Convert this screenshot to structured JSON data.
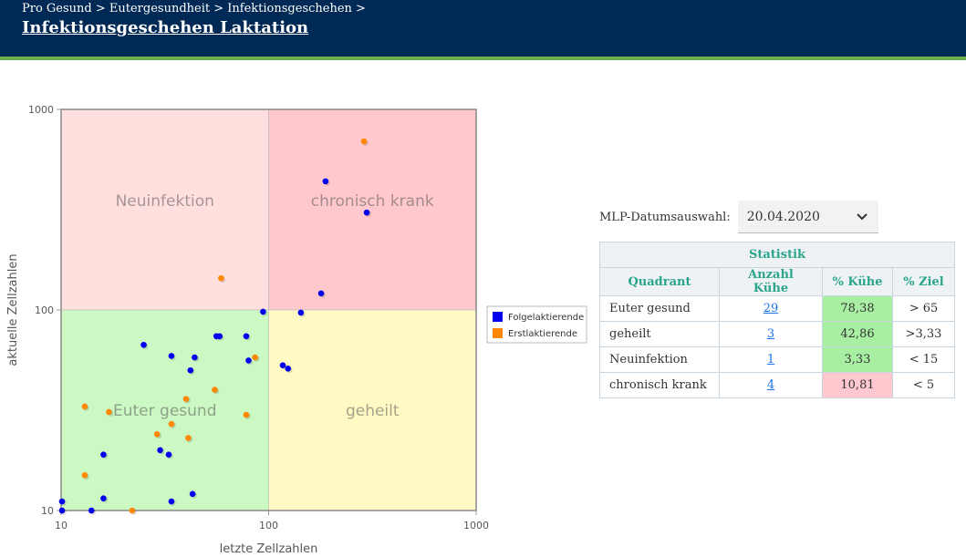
{
  "header": {
    "breadcrumb": [
      "Pro Gesund >",
      "Eutergesundheit >",
      "Infektionsgeschehen >"
    ],
    "title": "Infektionsgeschehen Laktation"
  },
  "controls": {
    "date_label": "MLP-Datumsauswahl:",
    "date_value": "20.04.2020"
  },
  "table": {
    "title": "Statistik",
    "headers": [
      "Quadrant",
      "Anzahl Kühe",
      "% Kühe",
      "% Ziel"
    ],
    "rows": [
      {
        "quadrant": "Euter gesund",
        "count": "29",
        "percent": "78,38",
        "target": "> 65",
        "status": "good"
      },
      {
        "quadrant": "geheilt",
        "count": "3",
        "percent": "42,86",
        "target": ">3,33",
        "status": "good"
      },
      {
        "quadrant": "Neuinfektion",
        "count": "1",
        "percent": "3,33",
        "target": "< 15",
        "status": "good"
      },
      {
        "quadrant": "chronisch krank",
        "count": "4",
        "percent": "10,81",
        "target": "< 5",
        "status": "bad"
      }
    ]
  },
  "colors": {
    "good": "#a8eea3",
    "bad": "#ffc8cf",
    "blue": "#0000ee",
    "orange": "#ff8800"
  },
  "chart_data": {
    "type": "scatter",
    "xlabel": "letzte Zellzahlen",
    "ylabel": "aktuelle Zellzahlen",
    "xscale": "log",
    "yscale": "log",
    "xlim": [
      10,
      1000
    ],
    "ylim": [
      10,
      1000
    ],
    "xticks": [
      "10",
      "100",
      "1000"
    ],
    "yticks": [
      "10",
      "100",
      "1000"
    ],
    "legend_position": "right",
    "quadrants": [
      {
        "label": "Neuinfektion",
        "x": [
          10,
          100
        ],
        "y": [
          100,
          1000
        ],
        "color": "#ffe0de"
      },
      {
        "label": "chronisch krank",
        "x": [
          100,
          1000
        ],
        "y": [
          100,
          1000
        ],
        "color": "#ffc8cc"
      },
      {
        "label": "Euter gesund",
        "x": [
          10,
          100
        ],
        "y": [
          10,
          100
        ],
        "color": "#ccf8c4"
      },
      {
        "label": "geheilt",
        "x": [
          100,
          1000
        ],
        "y": [
          10,
          100
        ],
        "color": "#fffac4"
      }
    ],
    "series": [
      {
        "name": "Folgelaktierende",
        "color": "#0000ee",
        "points": [
          [
            188,
            438
          ],
          [
            297,
            306
          ],
          [
            179,
            121
          ],
          [
            143,
            97
          ],
          [
            94,
            98
          ],
          [
            117,
            53
          ],
          [
            124,
            51
          ],
          [
            56,
            74
          ],
          [
            58,
            74
          ],
          [
            78,
            74
          ],
          [
            80,
            56
          ],
          [
            25,
            67
          ],
          [
            34,
            59
          ],
          [
            44,
            58
          ],
          [
            42,
            50
          ],
          [
            30,
            20
          ],
          [
            33,
            19
          ],
          [
            16,
            19
          ],
          [
            16,
            11.5
          ],
          [
            34,
            11.1
          ],
          [
            43,
            12.1
          ],
          [
            10.1,
            11.1
          ],
          [
            10.1,
            10
          ],
          [
            14,
            10
          ]
        ]
      },
      {
        "name": "Erstlaktierende",
        "color": "#ff8800",
        "points": [
          [
            288,
            693
          ],
          [
            59,
            144
          ],
          [
            86,
            58
          ],
          [
            55,
            40
          ],
          [
            13,
            33
          ],
          [
            17,
            31
          ],
          [
            40,
            36
          ],
          [
            78,
            30
          ],
          [
            34,
            27
          ],
          [
            29,
            24
          ],
          [
            41,
            23
          ],
          [
            13,
            15
          ],
          [
            22,
            10
          ]
        ]
      }
    ]
  }
}
